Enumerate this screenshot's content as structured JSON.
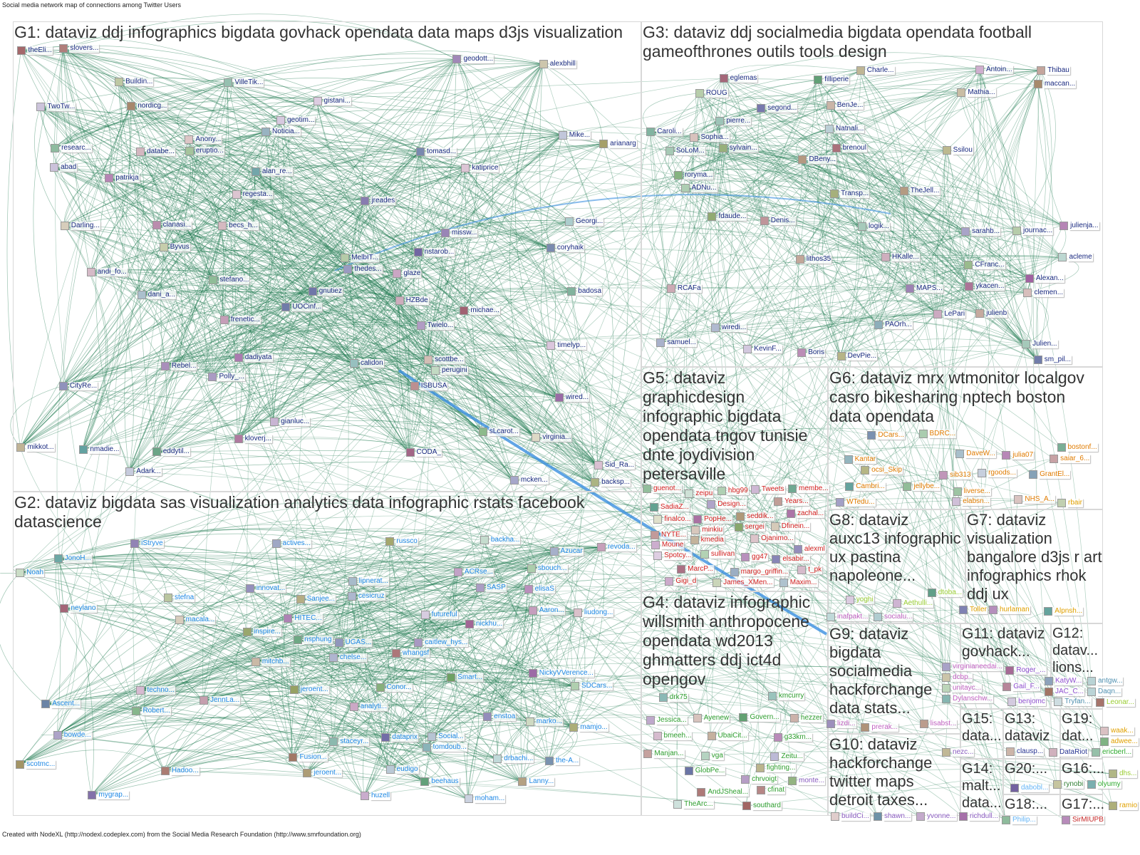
{
  "title": "Social media network map of connections among Twitter Users",
  "footer": "Created with NodeXL (http://nodexl.codeplex.com) from the Social Media Research Foundation (http://www.smrfoundation.org)",
  "colors": {
    "edge": "#1f7a4f",
    "highlight_edge": "#3a8fe0",
    "group_border": "#d8d8d8"
  },
  "groups": [
    {
      "id": "G1",
      "label": "G1: dataviz ddj infographics bigdata govhack opendata data maps d3js visualization",
      "color": "#1a2a80",
      "nodes": [
        "Anony...",
        "Polly_...",
        "Twielo...",
        "dadiyata",
        "nstarob...",
        "andi_fo...",
        "HZBde",
        "regesta...",
        "patrikja",
        "badosa",
        "abad",
        "Noticia...",
        "CODA_",
        "alan_re...",
        "stefano...",
        "coryhaik",
        "glaze",
        "Georgi...",
        "jreades",
        "sLcarot...",
        "Darling...",
        "arianarg",
        "UOCinf...",
        "virginia...",
        "katiprice",
        "slovers...",
        "tomasd...",
        "kloverj...",
        "mikkot...",
        "Adark...",
        "dani_a...",
        "scottbe...",
        "nmadie...",
        "alexbhill",
        "Sid_Ra...",
        "Rebel...",
        "clanasi...",
        "frenetic...",
        "missw...",
        "backsp...",
        "Mike...",
        "gnutiez",
        "geotim...",
        "thedes...",
        "geodott...",
        "eruptio...",
        "CityRe...",
        "timelyp...",
        "michae...",
        "TwoTw...",
        "nordicg...",
        "Byvus",
        "ISBUSA",
        "researc...",
        "gistani...",
        "Buildin...",
        "MelbIT...",
        "theEli...",
        "eddytil...",
        "gianluc...",
        "becs_h...",
        "calidon",
        "mcken...",
        "VilleTik...",
        "perugini",
        "databe...",
        "wired..."
      ]
    },
    {
      "id": "G2",
      "label": "G2: dataviz bigdata sas visualization analytics data infographic rstats facebook datascience",
      "color": "#1e88e5",
      "nodes": [
        "chelse...",
        "Aaron...",
        "innovat...",
        "the-A...",
        "sbouch...",
        "Noah",
        "beehaus",
        "mamjo...",
        "russco",
        "ACRse...",
        "SDCars...",
        "Social...",
        "Ascent...",
        "stefna",
        "Azucar",
        "enstoa",
        "NickyVVerence...",
        "elisaS",
        "mygrap...",
        "neylano",
        "liudong...",
        "jeroent...",
        "Sanjee...",
        "Fusion...",
        "caitlew_hys...",
        "moham...",
        "bowde...",
        "UGAS...",
        "JonoH...",
        "Robert...",
        "scotmc...",
        "nickhu...",
        "backha...",
        "whangsf",
        "Hadoo...",
        "HITEC...",
        "marko...",
        "drbachi...",
        "futureful",
        "iStryve",
        "eudigo",
        "techno...",
        "staceyr...",
        "tomdoub...",
        "Conor...",
        "JennLa...",
        "lipnerat...",
        "inspire...",
        "nsphung",
        "mitchb...",
        "macala...",
        "jeroent...",
        "dataprix",
        "revoda...",
        "Lanny...",
        "SASP",
        "huzell",
        "Smart...",
        "cesicruz",
        "actives...",
        "analyti..."
      ]
    },
    {
      "id": "G3",
      "label": "G3: dataviz ddj socialmedia bigdata opendata football gameofthrones outils tools design",
      "color": "#1a2a80",
      "nodes": [
        "Transp...",
        "julienb",
        "TheJell...",
        "roryma...",
        "logik...",
        "Julien...",
        "acleme",
        "SoLoM...",
        "Sophia...",
        "segond...",
        "MAPS...",
        "clemen...",
        "eglemas",
        "Denis...",
        "Antoin...",
        "Mathia...",
        "CFranc...",
        "sm_pil...",
        "wiredi...",
        "DevPie...",
        "pierre...",
        "julienja...",
        "Charle...",
        "Natnali...",
        "BenJe...",
        "Alexan...",
        "LePari",
        "ROUG",
        "lithos35",
        "sylvain...",
        "PAOrh...",
        "Boris",
        "KevinF...",
        "HKalle...",
        "ykacen...",
        "sarahb...",
        "Thibau",
        "RCAFa",
        "ADNu...",
        "DBeny...",
        "filliperie",
        "journac...",
        "Ssilou",
        "Caroli...",
        "samuel...",
        "maccan...",
        "fdaude...",
        "brenoul"
      ]
    },
    {
      "id": "G4",
      "label": "G4: dataviz infographic willsmith anthropocene opendata wd2013 ghmatters ddj ict4d opengov",
      "color": "#2e9e2e",
      "nodes": [
        "fighting...",
        "Zeitu...",
        "cfinat",
        "vga",
        "Manjan...",
        "drk75",
        "chrvoigt",
        "g33km...",
        "Govern...",
        "southard",
        "bmeeh...",
        "kmcurry",
        "hezzer",
        "AndJSheal...",
        "Ayenew",
        "GlobPe...",
        "UbaiCit...",
        "Jessica...",
        "TheArc..."
      ]
    },
    {
      "id": "G5",
      "label": "G5: dataviz graphicdesign infographic bigdata opendata tngov tunisie dnte joydivision petersaville",
      "color": "#d32020",
      "nodes": [
        "seddik...",
        "MarcP...",
        "zeipu",
        "gg47",
        "elsabir...",
        "NYTE...",
        "hbg99",
        "Ojanimo...",
        "margo_griffin...",
        "kmedia",
        "SadiaZ...",
        "Maxim...",
        "zachal...",
        "PopHe...",
        "Years...",
        "James_XMen...",
        "minkiu",
        "Spotcy...",
        "Gigi_d",
        "Dfinein...",
        "Tweets",
        "sullivan",
        "Design...",
        "t_pk",
        "finalco...",
        "guenot...",
        "Moune",
        "sergei",
        "alexml",
        "membe..."
      ]
    },
    {
      "id": "G6",
      "label": "G6: dataviz mrx wtmonitor localgov casro bikesharing nptech boston data opendata",
      "color": "#e07b00",
      "nodes": [
        "WTedu...",
        "saiar_6...",
        "sib313",
        "julia07",
        "NHS_A...",
        "ocsi_Skip",
        "DaveW...",
        "Kantar",
        "BDRC...",
        "GrantEl...",
        "DCars...",
        "bostonf...",
        "rgoods...",
        "Cambri...",
        "jellybe...",
        "liverse...",
        "elabsn..."
      ]
    },
    {
      "id": "G7",
      "label": "G7: dataviz visualization bangalore d3js r art infographics rhok ddj ux",
      "color": "#e0a000",
      "nodes": [
        "Alpnsh...",
        "hurlaman",
        "rbair",
        "Toller"
      ]
    },
    {
      "id": "G8",
      "label": "G8: dataviz auxc13 infographic ux pastina napoleone...",
      "color": "#9acd32",
      "nodes": [
        "Aethulli...",
        "yoghi",
        "dtoba..."
      ]
    },
    {
      "id": "G9",
      "label": "G9: dataviz bigdata socialmedia hackforchange data stats...",
      "color": "#c060c0",
      "nodes": [
        "prerak...",
        "lisabst...",
        "socialu...",
        "dcbp..",
        "unitayc...",
        "virginianeedai...",
        "Dylanschw...",
        "lizdi...",
        "inafpakt..."
      ]
    },
    {
      "id": "G10",
      "label": "G10: dataviz hackforchange twitter maps detroit taxes...",
      "color": "#8a5cc0",
      "nodes": [
        "shawn...",
        "yvonne...",
        "buildCi...",
        "nezc...",
        "monte...",
        "richdull..."
      ]
    },
    {
      "id": "G11",
      "label": "G11: dataviz govhack...",
      "color": "#9050d0",
      "nodes": [
        "Gail_F...",
        "benjomc",
        "Roger_...",
        "KatyW...",
        "JAC_C..."
      ]
    },
    {
      "id": "G12",
      "label": "G12: datav... lions...",
      "color": "#5090b0",
      "nodes": [
        "Tryfan...",
        "antgw...",
        "Daqn..."
      ]
    },
    {
      "id": "G13",
      "label": "G13: dataviz",
      "color": "#283593",
      "nodes": [
        "clausp...",
        "DataRiot"
      ]
    },
    {
      "id": "G14",
      "label": "G14: malt... data...",
      "color": "#64b5f6",
      "nodes": [
        "dabobl...",
        "Philip..."
      ]
    },
    {
      "id": "G15",
      "label": "G15: data...",
      "color": "#2e7d32",
      "nodes": [
        "rynobi"
      ]
    },
    {
      "id": "G16",
      "label": "G16:...",
      "color": "#2eaa2e",
      "nodes": [
        "olyumy",
        "ericberl..."
      ]
    },
    {
      "id": "G17",
      "label": "G17:...",
      "color": "#c62828",
      "nodes": [
        "SirMIUPB"
      ]
    },
    {
      "id": "G18",
      "label": "G18:...",
      "color": "#e0a000",
      "nodes": [
        "ramio",
        "adwee..."
      ]
    },
    {
      "id": "G19",
      "label": "G19: dat...",
      "color": "#e0a000",
      "nodes": [
        "waak..."
      ]
    },
    {
      "id": "G20",
      "label": "G20:...",
      "color": "#9acd32",
      "nodes": [
        "dhs...",
        "Leonar..."
      ]
    }
  ]
}
